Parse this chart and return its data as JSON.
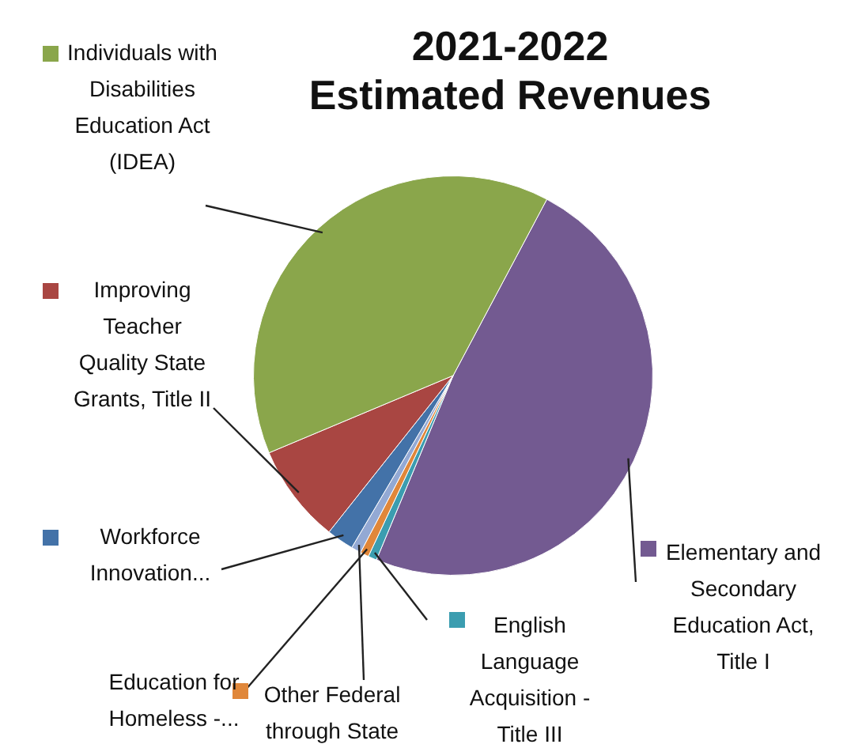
{
  "chart_data": {
    "type": "pie",
    "title": "2021-2022 Estimated Revenues",
    "categories": [
      "Elementary and Secondary Education Act, Title I",
      "English Language Acquisition - Title III",
      "Education for Homeless -...",
      "Other Federal through State",
      "Workforce Innovation...",
      "Improving Teacher Quality State Grants, Title II",
      "Individuals with Disabilities Education Act (IDEA)"
    ],
    "values": [
      48.5,
      0.7,
      0.7,
      0.8,
      2.2,
      8,
      39.1
    ],
    "colors": [
      "#735a91",
      "#3b9db0",
      "#e0873a",
      "#93a9d4",
      "#4372a8",
      "#a94642",
      "#8aa64b"
    ],
    "legend": "left"
  }
}
